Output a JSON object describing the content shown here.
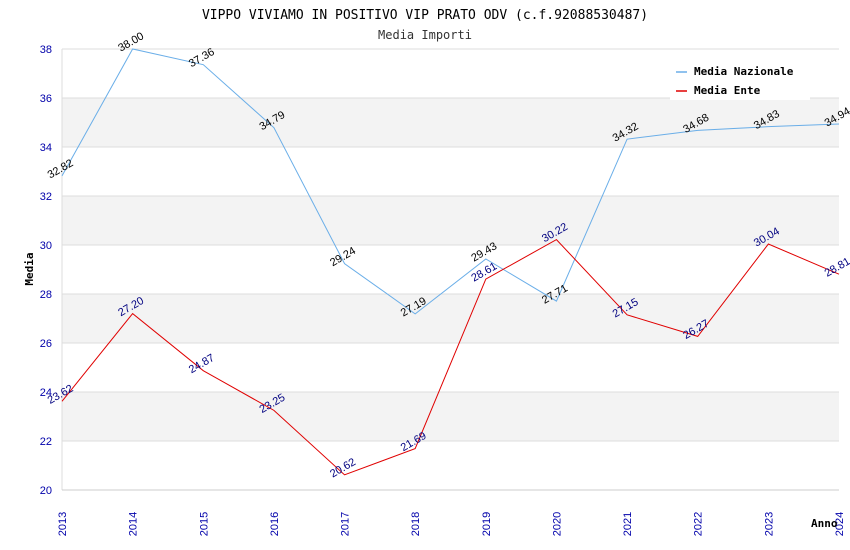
{
  "chart_data": {
    "type": "line",
    "title": "VIPPO VIVIAMO IN POSITIVO VIP PRATO ODV (c.f.92088530487)",
    "subtitle": "Media Importi",
    "xlabel": "Anno",
    "ylabel": "Media",
    "ylim": [
      20,
      38
    ],
    "yticks": [
      20,
      22,
      24,
      26,
      28,
      30,
      32,
      34,
      36,
      38
    ],
    "categories": [
      "2013",
      "2014",
      "2015",
      "2016",
      "2017",
      "2018",
      "2019",
      "2020",
      "2021",
      "2022",
      "2023",
      "2024"
    ],
    "series": [
      {
        "name": "Media Nazionale",
        "color": "#6aaee8",
        "values": [
          32.82,
          38.0,
          37.36,
          34.79,
          29.24,
          27.19,
          29.43,
          27.71,
          34.32,
          34.68,
          34.83,
          34.94
        ],
        "labels": [
          "32.82",
          "38.00",
          "37.36",
          "34.79",
          "29.24",
          "27.19",
          "29.43",
          "27.71",
          "34.32",
          "34.68",
          "34.83",
          "34.94"
        ]
      },
      {
        "name": "Media Ente",
        "color": "#e00000",
        "values": [
          23.62,
          27.2,
          24.87,
          23.25,
          20.62,
          21.69,
          28.61,
          30.22,
          27.15,
          26.27,
          30.04,
          28.81
        ],
        "labels": [
          "23.62",
          "27.20",
          "24.87",
          "23.25",
          "20.62",
          "21.69",
          "28.61",
          "30.22",
          "27.15",
          "26.27",
          "30.04",
          "28.81"
        ]
      }
    ],
    "legend_position": "top-right",
    "grid": true
  }
}
